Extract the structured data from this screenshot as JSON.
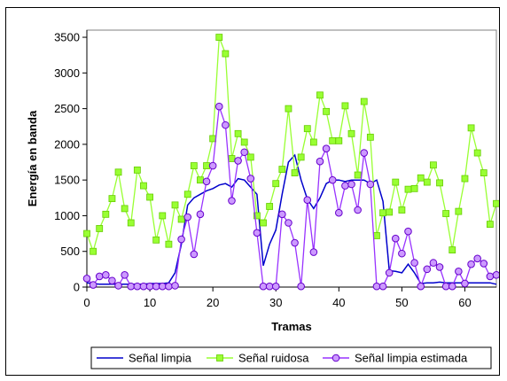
{
  "chart_data": {
    "type": "line",
    "title": "",
    "xlabel": "Tramas",
    "ylabel": "Energía en banda",
    "xlim": [
      0,
      65
    ],
    "ylim": [
      0,
      3600
    ],
    "xticks": [
      0,
      10,
      20,
      30,
      40,
      50,
      60
    ],
    "yticks": [
      0,
      500,
      1000,
      1500,
      2000,
      2500,
      3000,
      3500
    ],
    "grid": false,
    "legend_position": "bottom",
    "series": [
      {
        "name": "Señal limpia",
        "color": "#0000cc",
        "marker": "none",
        "x": [
          0,
          1,
          2,
          3,
          4,
          5,
          6,
          7,
          8,
          9,
          10,
          11,
          12,
          13,
          14,
          15,
          16,
          17,
          18,
          19,
          20,
          21,
          22,
          23,
          24,
          25,
          26,
          27,
          28,
          29,
          30,
          31,
          32,
          33,
          34,
          35,
          36,
          37,
          38,
          39,
          40,
          41,
          42,
          43,
          44,
          45,
          46,
          47,
          48,
          49,
          50,
          51,
          52,
          53,
          54,
          55,
          56,
          57,
          58,
          59,
          60,
          61,
          62,
          63,
          64,
          65
        ],
        "values": [
          60,
          50,
          40,
          40,
          40,
          40,
          40,
          40,
          40,
          40,
          50,
          50,
          50,
          60,
          200,
          600,
          1150,
          1250,
          1300,
          1350,
          1380,
          1430,
          1450,
          1400,
          1520,
          1500,
          1400,
          1300,
          300,
          600,
          800,
          1300,
          1750,
          1850,
          1500,
          1230,
          1100,
          1250,
          1450,
          1500,
          1500,
          1480,
          1500,
          1500,
          1500,
          1450,
          1500,
          1200,
          230,
          220,
          200,
          320,
          200,
          50,
          60,
          60,
          70,
          60,
          60,
          60,
          60,
          60,
          60,
          60,
          60,
          40
        ]
      },
      {
        "name": "Señal ruidosa",
        "color": "#99ff33",
        "marker": "square",
        "x": [
          0,
          1,
          2,
          3,
          4,
          5,
          6,
          7,
          8,
          9,
          10,
          11,
          12,
          13,
          14,
          15,
          16,
          17,
          18,
          19,
          20,
          21,
          22,
          23,
          24,
          25,
          26,
          27,
          28,
          29,
          30,
          31,
          32,
          33,
          34,
          35,
          36,
          37,
          38,
          39,
          40,
          41,
          42,
          43,
          44,
          45,
          46,
          47,
          48,
          49,
          50,
          51,
          52,
          53,
          54,
          55,
          56,
          57,
          58,
          59,
          60,
          61,
          62,
          63,
          64,
          65
        ],
        "values": [
          750,
          500,
          820,
          1020,
          1240,
          1610,
          1100,
          900,
          1640,
          1420,
          1260,
          660,
          1000,
          600,
          1150,
          950,
          1300,
          1700,
          1500,
          1700,
          2080,
          3500,
          3270,
          1800,
          2150,
          2030,
          1820,
          1000,
          900,
          1130,
          1450,
          1650,
          2500,
          1600,
          1820,
          2220,
          2030,
          2690,
          2460,
          2050,
          2050,
          2540,
          2150,
          1570,
          2600,
          2100,
          720,
          1040,
          1050,
          1470,
          1080,
          1370,
          1380,
          1530,
          1470,
          1710,
          1460,
          1030,
          520,
          1060,
          1520,
          2230,
          1880,
          1600,
          880,
          1170
        ]
      },
      {
        "name": "Señal limpia estimada",
        "color": "#9933ff",
        "marker": "circle",
        "x": [
          0,
          1,
          2,
          3,
          4,
          5,
          6,
          7,
          8,
          9,
          10,
          11,
          12,
          13,
          14,
          15,
          16,
          17,
          18,
          19,
          20,
          21,
          22,
          23,
          24,
          25,
          26,
          27,
          28,
          29,
          30,
          31,
          32,
          33,
          34,
          35,
          36,
          37,
          38,
          39,
          40,
          41,
          42,
          43,
          44,
          45,
          46,
          47,
          48,
          49,
          50,
          51,
          52,
          53,
          54,
          55,
          56,
          57,
          58,
          59,
          60,
          61,
          62,
          63,
          64,
          65
        ],
        "values": [
          120,
          30,
          150,
          170,
          90,
          20,
          170,
          10,
          10,
          10,
          10,
          10,
          10,
          10,
          20,
          670,
          980,
          460,
          1020,
          1480,
          1700,
          2530,
          2270,
          1210,
          1770,
          1890,
          1520,
          760,
          10,
          10,
          10,
          1020,
          900,
          620,
          10,
          1220,
          490,
          1760,
          1940,
          1500,
          1040,
          1420,
          1440,
          1080,
          1880,
          1440,
          10,
          10,
          200,
          680,
          470,
          780,
          340,
          10,
          250,
          340,
          280,
          10,
          10,
          220,
          50,
          320,
          400,
          330,
          150,
          170
        ]
      }
    ]
  }
}
